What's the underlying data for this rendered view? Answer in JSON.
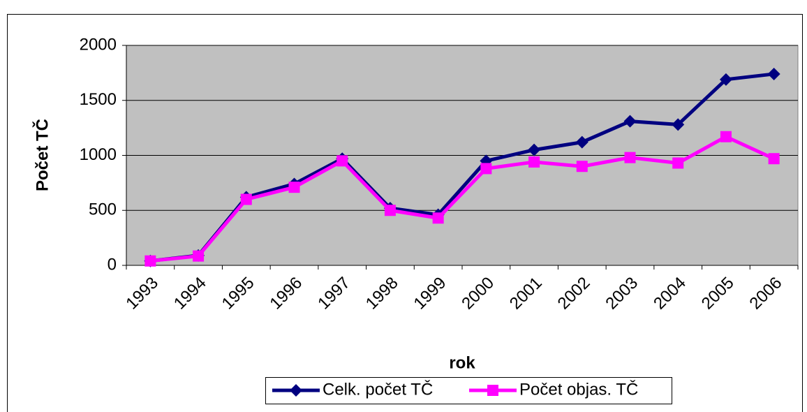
{
  "chart_data": {
    "type": "line",
    "y_label": "Počet TČ",
    "x_label": "rok",
    "categories": [
      "1993",
      "1994",
      "1995",
      "1996",
      "1997",
      "1998",
      "1999",
      "2000",
      "2001",
      "2002",
      "2003",
      "2004",
      "2005",
      "2006"
    ],
    "series": [
      {
        "name": "Celk. počet TČ",
        "color": "#000080",
        "marker": "diamond",
        "values": [
          40,
          90,
          620,
          740,
          970,
          520,
          460,
          950,
          1050,
          1120,
          1310,
          1280,
          1690,
          1740
        ]
      },
      {
        "name": "Počet objas. TČ",
        "color": "#ff00ff",
        "marker": "square",
        "values": [
          40,
          85,
          600,
          710,
          950,
          500,
          430,
          880,
          940,
          900,
          980,
          930,
          1170,
          970
        ]
      }
    ],
    "ylim": [
      0,
      2000
    ],
    "yticks": [
      0,
      500,
      1000,
      1500,
      2000
    ],
    "grid": true,
    "plot_background": "#c0c0c0"
  }
}
